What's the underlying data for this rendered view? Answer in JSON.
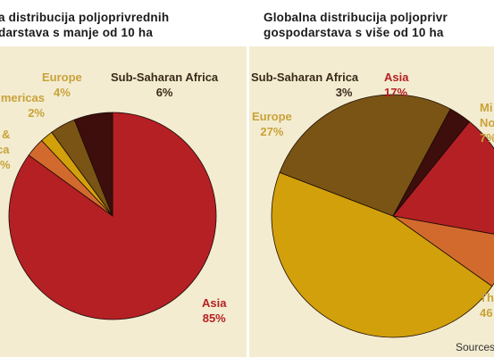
{
  "titles": {
    "left": [
      "a distribucija poljoprivrednih",
      "darstava s manje od 10 ha"
    ],
    "right": [
      "Globalna distribucija poljoprivr",
      "gospodarstava s više od 10 ha"
    ]
  },
  "source_text": "Sources",
  "colors": {
    "panel_bg": "#f3ecd0",
    "asia": "#b52024",
    "gold": "#c9a23a",
    "sub_saharan": "#3d0e0c",
    "europe": "#7a5414",
    "orange": "#d36a2d",
    "ochre": "#d1a00b"
  },
  "chart_data": [
    {
      "type": "pie",
      "title": "a distribucija poljoprivrednih darstava s manje od 10 ha",
      "slices": [
        {
          "label": "Asia",
          "value": 85,
          "value_label": "85%",
          "color": "#b52024"
        },
        {
          "label": "& ...ca",
          "value": 3,
          "value_label": "",
          "color": "#d36a2d"
        },
        {
          "label": "mericas",
          "value": 2,
          "value_label": "2%",
          "color": "#d1a00b"
        },
        {
          "label": "Europe",
          "value": 4,
          "value_label": "4%",
          "color": "#7a5414"
        },
        {
          "label": "Sub-Saharan Africa",
          "value": 6,
          "value_label": "6%",
          "color": "#3d0e0c"
        }
      ],
      "label_text": {
        "asia": [
          "Asia",
          "85%"
        ],
        "europe": [
          "Europe",
          "4%"
        ],
        "ssa": [
          "Sub-Saharan Africa",
          "6%"
        ],
        "americas": [
          "mericas",
          "2%"
        ],
        "amp": [
          "&",
          "ca",
          "%"
        ]
      }
    },
    {
      "type": "pie",
      "title": "Globalna distribucija poljoprivr gospodarstava s više od 10 ha",
      "slices": [
        {
          "label": "Asia",
          "value": 17,
          "value_label": "17%",
          "color": "#b52024"
        },
        {
          "label": "Mi... No...",
          "value": 7,
          "value_label": "7%",
          "color": "#d36a2d"
        },
        {
          "label": "Th...",
          "value": 46,
          "value_label": "46",
          "color": "#d1a00b"
        },
        {
          "label": "Europe",
          "value": 27,
          "value_label": "27%",
          "color": "#7a5414"
        },
        {
          "label": "Sub-Saharan Africa",
          "value": 3,
          "value_label": "3%",
          "color": "#3d0e0c"
        }
      ],
      "label_text": {
        "asia": [
          "Asia",
          "17%"
        ],
        "europe": [
          "Europe",
          "27%"
        ],
        "ssa": [
          "Sub-Saharan Africa",
          "3%"
        ],
        "mi": [
          "Mi",
          "No",
          "7%"
        ],
        "th": [
          "Th",
          "46"
        ]
      }
    }
  ]
}
